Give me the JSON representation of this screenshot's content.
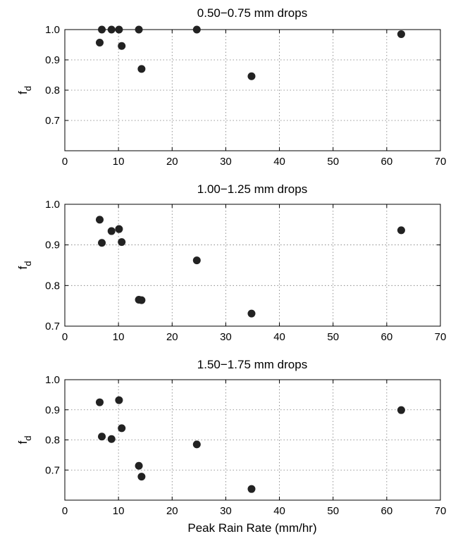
{
  "chart_data": [
    {
      "type": "scatter",
      "title": "0.50−0.75 mm drops",
      "ylabel": "f",
      "ylabel_sub": "d",
      "xlabel": "",
      "xlim": [
        0,
        70
      ],
      "ylim": [
        0.6,
        1.0
      ],
      "xticks": [
        "0",
        "10",
        "20",
        "30",
        "40",
        "50",
        "60",
        "70"
      ],
      "yticks": [
        "0.7",
        "0.8",
        "0.9",
        "1.0"
      ],
      "grid": true,
      "x": [
        6.5,
        6.9,
        8.7,
        10.1,
        10.6,
        13.8,
        14.3,
        24.6,
        34.8,
        62.7
      ],
      "y": [
        0.957,
        1.0,
        1.0,
        1.0,
        0.946,
        1.0,
        0.87,
        1.0,
        0.846,
        0.985
      ]
    },
    {
      "type": "scatter",
      "title": "1.00−1.25 mm drops",
      "ylabel": "f",
      "ylabel_sub": "d",
      "xlabel": "",
      "xlim": [
        0,
        70
      ],
      "ylim": [
        0.7,
        1.0
      ],
      "xticks": [
        "0",
        "10",
        "20",
        "30",
        "40",
        "50",
        "60",
        "70"
      ],
      "yticks": [
        "0.7",
        "0.8",
        "0.9",
        "1.0"
      ],
      "grid": true,
      "x": [
        6.5,
        6.9,
        8.7,
        10.1,
        10.6,
        13.8,
        14.3,
        24.6,
        34.8,
        62.7
      ],
      "y": [
        0.962,
        0.905,
        0.934,
        0.939,
        0.907,
        0.765,
        0.764,
        0.862,
        0.731,
        0.936
      ]
    },
    {
      "type": "scatter",
      "title": "1.50−1.75 mm drops",
      "ylabel": "f",
      "ylabel_sub": "d",
      "xlabel": "Peak Rain Rate (mm/hr)",
      "xlim": [
        0,
        70
      ],
      "ylim": [
        0.6,
        1.0
      ],
      "xticks": [
        "0",
        "10",
        "20",
        "30",
        "40",
        "50",
        "60",
        "70"
      ],
      "yticks": [
        "0.7",
        "0.8",
        "0.9",
        "1.0"
      ],
      "grid": true,
      "x": [
        6.5,
        6.9,
        8.7,
        10.1,
        10.6,
        13.8,
        14.3,
        24.6,
        34.8,
        62.7
      ],
      "y": [
        0.925,
        0.811,
        0.803,
        0.932,
        0.839,
        0.714,
        0.678,
        0.785,
        0.637,
        0.899
      ]
    }
  ]
}
